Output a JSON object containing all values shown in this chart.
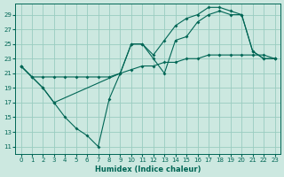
{
  "xlabel": "Humidex (Indice chaleur)",
  "bg_color": "#cce8e0",
  "grid_color": "#99ccc0",
  "line_color": "#006655",
  "xlim": [
    -0.5,
    23.5
  ],
  "ylim": [
    10,
    30.5
  ],
  "yticks": [
    11,
    13,
    15,
    17,
    19,
    21,
    23,
    25,
    27,
    29
  ],
  "xticks": [
    0,
    1,
    2,
    3,
    4,
    5,
    6,
    7,
    8,
    9,
    10,
    11,
    12,
    13,
    14,
    15,
    16,
    17,
    18,
    19,
    20,
    21,
    22,
    23
  ],
  "line1_x": [
    0,
    1,
    2,
    3,
    4,
    5,
    6,
    7,
    8,
    9,
    10,
    11,
    12,
    13,
    14,
    15,
    16,
    17,
    18,
    19,
    20,
    21,
    22,
    23
  ],
  "line1_y": [
    22,
    20.5,
    19,
    17,
    15,
    13.5,
    12.5,
    11,
    17.5,
    21,
    25,
    25,
    23,
    21,
    25.5,
    26,
    28,
    29,
    29.5,
    29,
    29,
    24,
    23,
    23
  ],
  "line2_x": [
    0,
    2,
    3,
    9,
    10,
    11,
    12,
    13,
    14,
    15,
    16,
    17,
    18,
    19,
    20,
    21,
    22,
    23
  ],
  "line2_y": [
    22,
    19,
    17,
    21,
    25,
    25,
    23.5,
    25.5,
    27.5,
    28.5,
    29,
    30,
    30,
    29.5,
    29,
    24,
    23,
    23
  ],
  "line3_x": [
    0,
    1,
    2,
    3,
    4,
    5,
    6,
    7,
    8,
    9,
    10,
    11,
    12,
    13,
    14,
    15,
    16,
    17,
    18,
    19,
    20,
    21,
    22,
    23
  ],
  "line3_y": [
    22,
    20.5,
    20.5,
    20.5,
    20.5,
    20.5,
    20.5,
    20.5,
    20.5,
    21,
    21.5,
    22,
    22,
    22.5,
    22.5,
    23,
    23,
    23.5,
    23.5,
    23.5,
    23.5,
    23.5,
    23.5,
    23
  ]
}
